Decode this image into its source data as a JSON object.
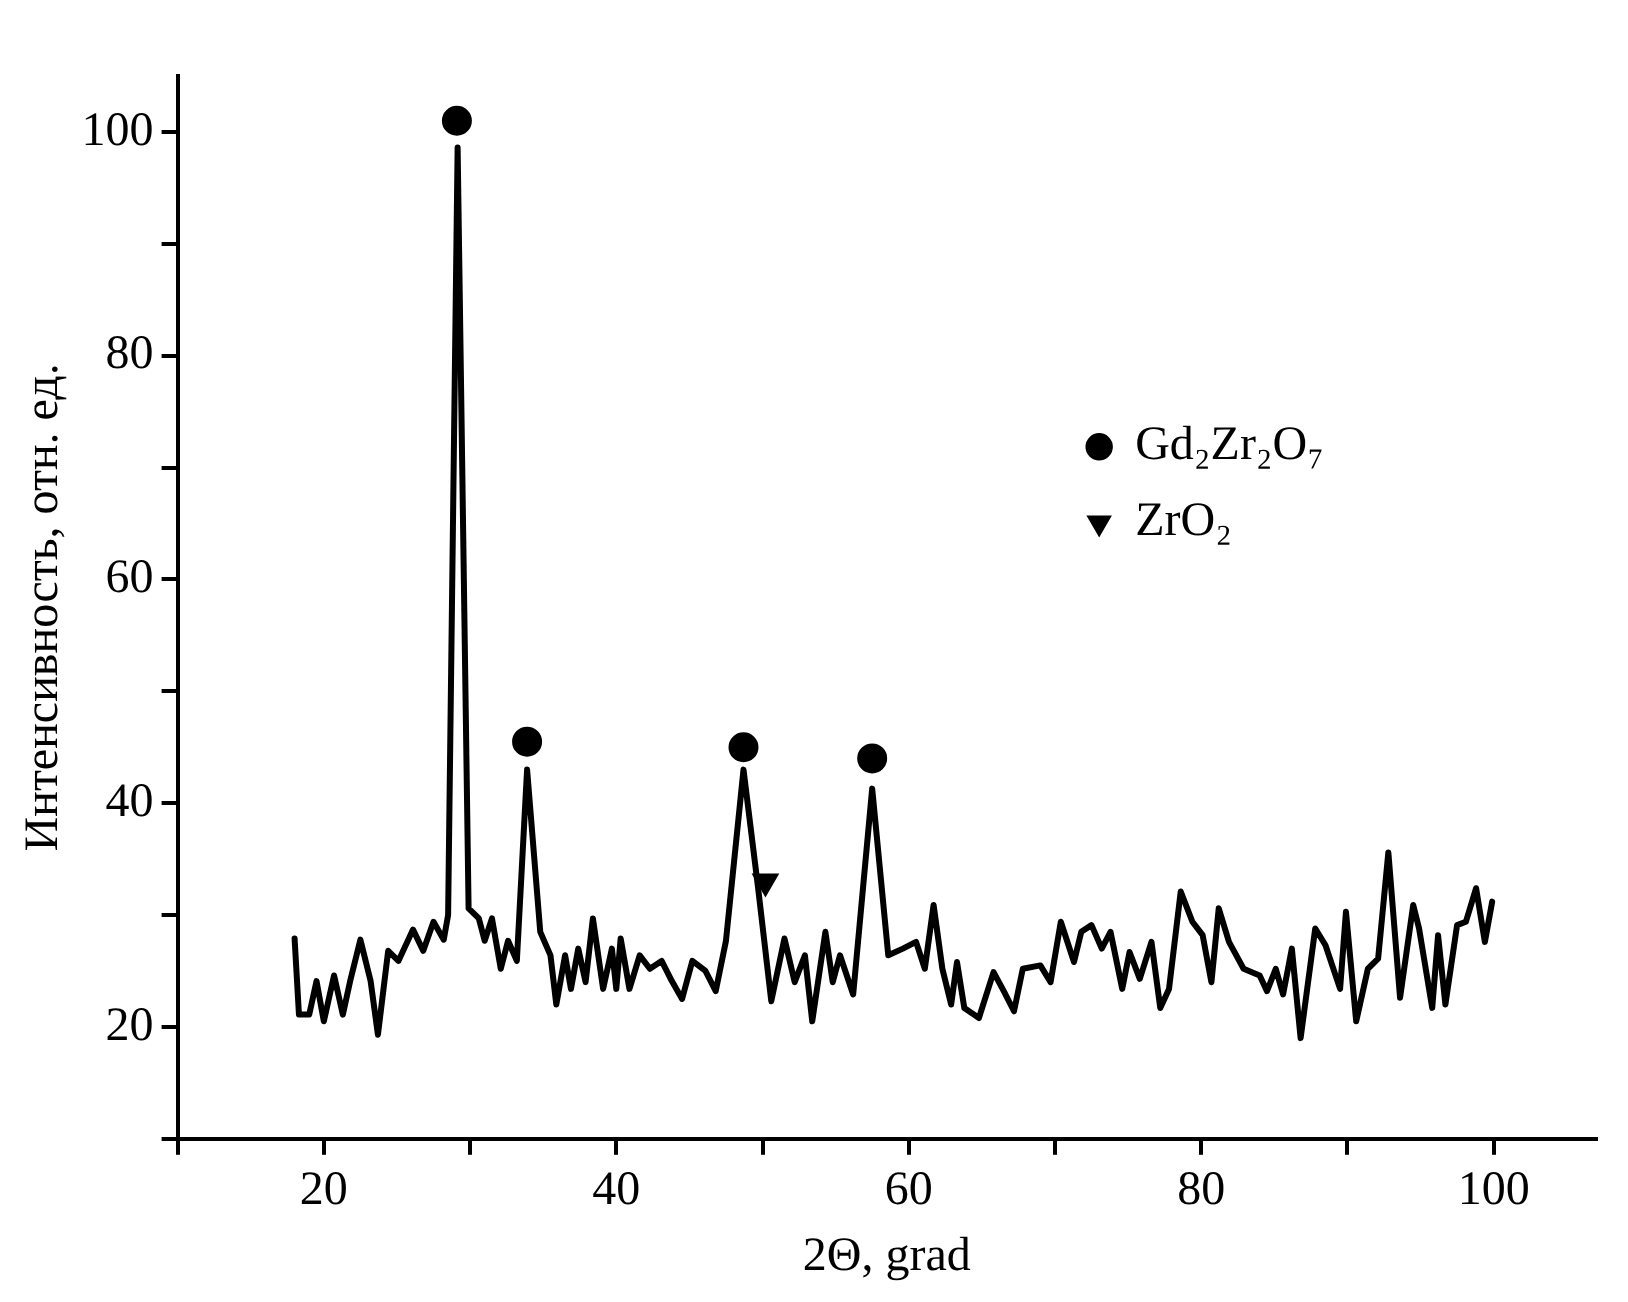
{
  "chart_data": {
    "type": "line",
    "xlabel": "2Θ, grad",
    "ylabel": "Интенсивность, отн. ед.",
    "xlim": [
      10,
      107
    ],
    "ylim": [
      10,
      105
    ],
    "xticks": [
      {
        "value": 10,
        "label": null
      },
      20,
      {
        "value": 30,
        "label": null
      },
      40,
      {
        "value": 50,
        "label": null
      },
      60,
      {
        "value": 70,
        "label": null
      },
      80,
      {
        "value": 90,
        "label": null
      },
      100
    ],
    "yticks": [
      {
        "value": 10,
        "label": null
      },
      20,
      {
        "value": 30,
        "label": null
      },
      40,
      {
        "value": 50,
        "label": null
      },
      60,
      {
        "value": 70,
        "label": null
      },
      80,
      {
        "value": 90,
        "label": null
      },
      100
    ],
    "grid": false,
    "legend": "right",
    "line_style": "solid",
    "series": [
      {
        "color": "#000000",
        "marker": "none",
        "x": [
          18.0,
          18.3,
          19.0,
          19.5,
          20.0,
          20.7,
          21.3,
          21.8,
          22.5,
          23.2,
          23.7,
          24.4,
          25.1,
          26.1,
          26.8,
          27.5,
          28.2,
          28.5,
          29.15,
          29.9,
          30.6,
          31.0,
          31.5,
          32.1,
          32.6,
          33.2,
          33.9,
          34.8,
          35.5,
          35.9,
          36.5,
          36.9,
          37.4,
          37.9,
          38.4,
          39.1,
          39.7,
          40.0,
          40.3,
          40.9,
          41.6,
          42.3,
          43.1,
          43.8,
          44.5,
          45.2,
          46.1,
          46.8,
          47.5,
          48.7,
          49.7,
          50.6,
          51.5,
          52.2,
          52.9,
          53.4,
          54.3,
          54.8,
          55.3,
          56.2,
          57.5,
          58.6,
          59.6,
          60.5,
          61.1,
          61.7,
          62.3,
          62.9,
          63.3,
          63.8,
          64.8,
          65.8,
          66.5,
          67.2,
          67.8,
          69.0,
          69.7,
          70.4,
          71.3,
          71.8,
          72.5,
          73.2,
          73.8,
          74.6,
          75.1,
          75.8,
          76.6,
          77.2,
          77.8,
          78.6,
          79.4,
          80.1,
          80.7,
          81.2,
          81.9,
          82.9,
          84.0,
          84.5,
          85.1,
          85.6,
          86.2,
          86.8,
          87.8,
          88.5,
          89.5,
          89.9,
          90.6,
          91.4,
          92.1,
          92.8,
          93.6,
          94.5,
          94.9,
          95.8,
          96.2,
          96.7,
          97.5,
          98.1,
          98.8,
          99.4,
          99.9
        ],
        "values": [
          27.9,
          21.1,
          21.1,
          24.1,
          20.5,
          24.6,
          21.1,
          24.1,
          27.8,
          24.1,
          19.3,
          26.8,
          25.9,
          28.7,
          26.8,
          29.4,
          27.8,
          30.0,
          98.6,
          30.6,
          29.7,
          27.7,
          29.7,
          25.2,
          27.7,
          25.9,
          43.0,
          28.5,
          26.4,
          22.0,
          26.4,
          23.4,
          27.0,
          24.0,
          29.7,
          23.4,
          27.0,
          23.4,
          27.9,
          23.4,
          26.4,
          25.2,
          25.9,
          24.1,
          22.5,
          25.9,
          25.0,
          23.2,
          27.7,
          43.0,
          32.4,
          22.3,
          27.9,
          24.0,
          26.4,
          20.5,
          28.5,
          24.0,
          26.4,
          22.9,
          41.3,
          26.4,
          27.0,
          27.6,
          25.2,
          30.9,
          25.2,
          22.0,
          25.8,
          21.7,
          20.8,
          24.9,
          23.2,
          21.4,
          25.2,
          25.5,
          24.0,
          29.4,
          25.8,
          28.5,
          29.1,
          27.0,
          28.5,
          23.4,
          26.7,
          24.3,
          27.6,
          21.7,
          23.4,
          32.1,
          29.4,
          28.2,
          24.0,
          30.6,
          27.6,
          25.2,
          24.6,
          23.2,
          25.2,
          22.9,
          27.0,
          19.0,
          28.8,
          27.3,
          23.4,
          30.3,
          20.5,
          25.2,
          26.1,
          35.6,
          22.6,
          30.9,
          28.8,
          21.7,
          28.2,
          22.0,
          29.1,
          29.4,
          32.4,
          27.6,
          31.2
        ]
      },
      {
        "type": "scatter",
        "name": "Gd₂Zr₂O₇",
        "color": "#000000",
        "marker": "circle",
        "x": [
          29.1,
          33.9,
          48.7,
          57.5
        ],
        "values": [
          101,
          45.5,
          45,
          44
        ]
      },
      {
        "type": "scatter",
        "name": "ZrO₂",
        "color": "#000000",
        "marker": "triangle",
        "x": [
          50.2
        ],
        "values": [
          33
        ]
      }
    ]
  }
}
